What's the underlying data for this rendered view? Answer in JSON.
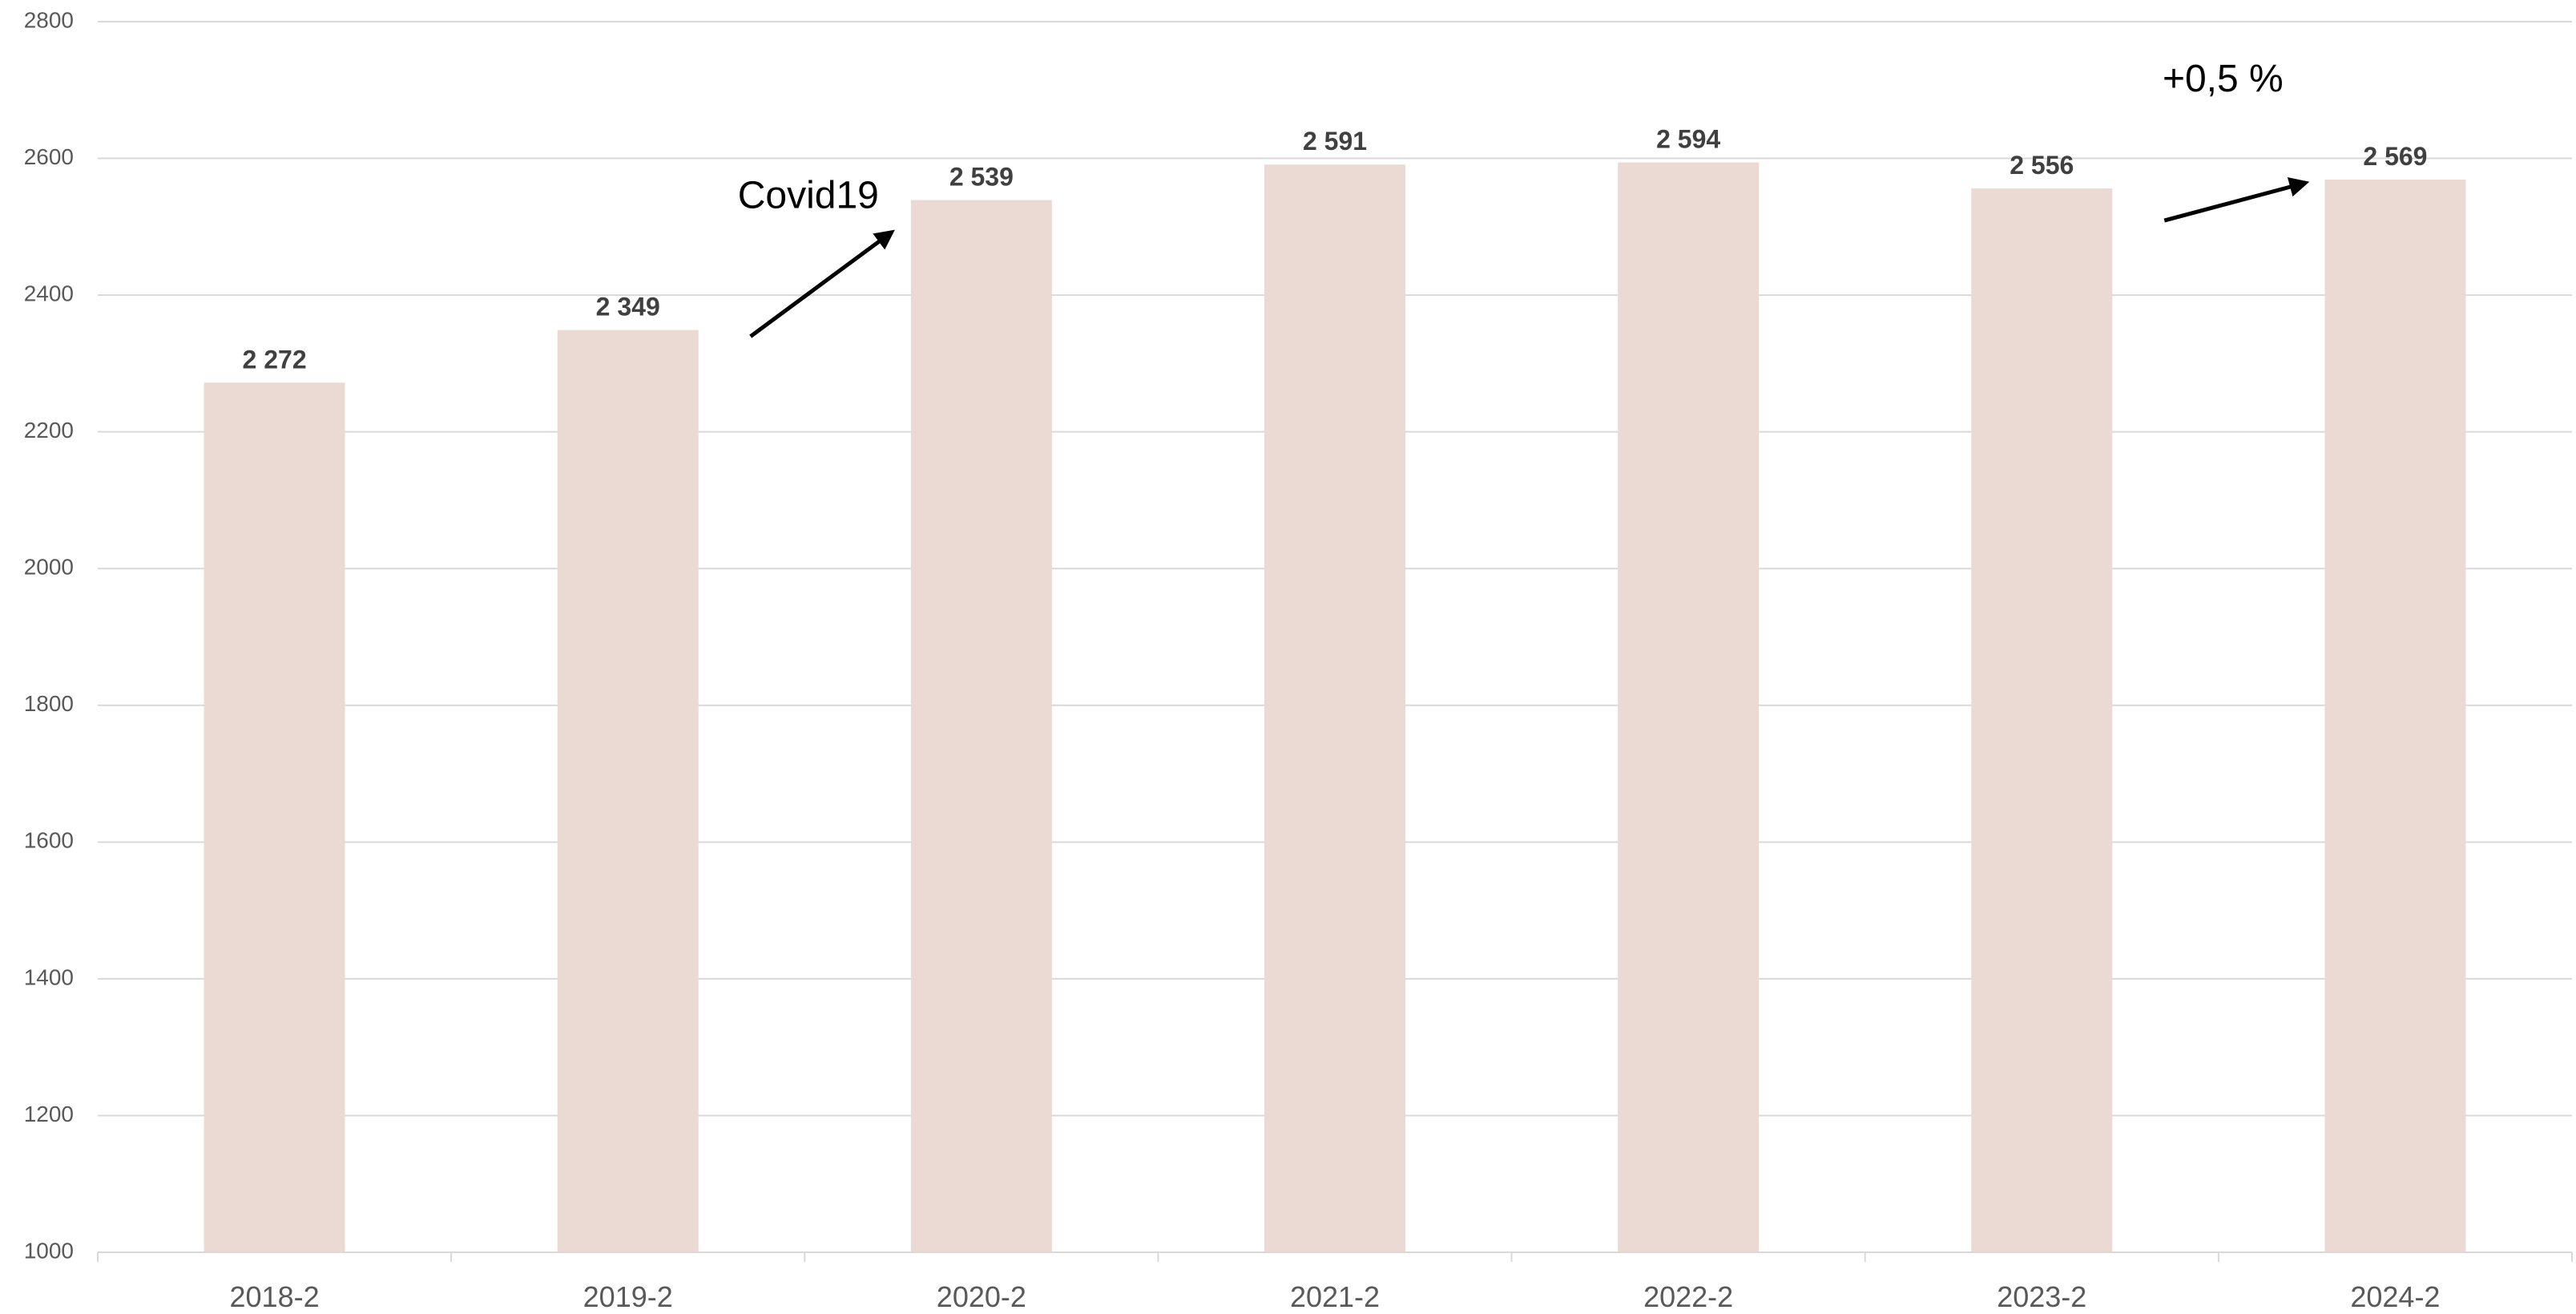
{
  "chart_data": {
    "type": "bar",
    "categories": [
      "2018-2",
      "2019-2",
      "2020-2",
      "2021-2",
      "2022-2",
      "2023-2",
      "2024-2"
    ],
    "values": [
      2272,
      2349,
      2539,
      2591,
      2594,
      2556,
      2569
    ],
    "data_labels": [
      "2 272",
      "2 349",
      "2 539",
      "2 591",
      "2 594",
      "2 556",
      "2 569"
    ],
    "ylim": [
      1000,
      2800
    ],
    "yticks": [
      1000,
      1200,
      1400,
      1600,
      1800,
      2000,
      2200,
      2400,
      2600,
      2800
    ],
    "title": "",
    "xlabel": "",
    "ylabel": "",
    "grid": true,
    "legend": "none",
    "bar_color": "#ebdad3",
    "annotations": [
      {
        "text": "Covid19",
        "from_category": "2019-2",
        "to_category": "2020-2"
      },
      {
        "text": "+0,5 %",
        "from_category": "2023-2",
        "to_category": "2024-2"
      }
    ]
  }
}
